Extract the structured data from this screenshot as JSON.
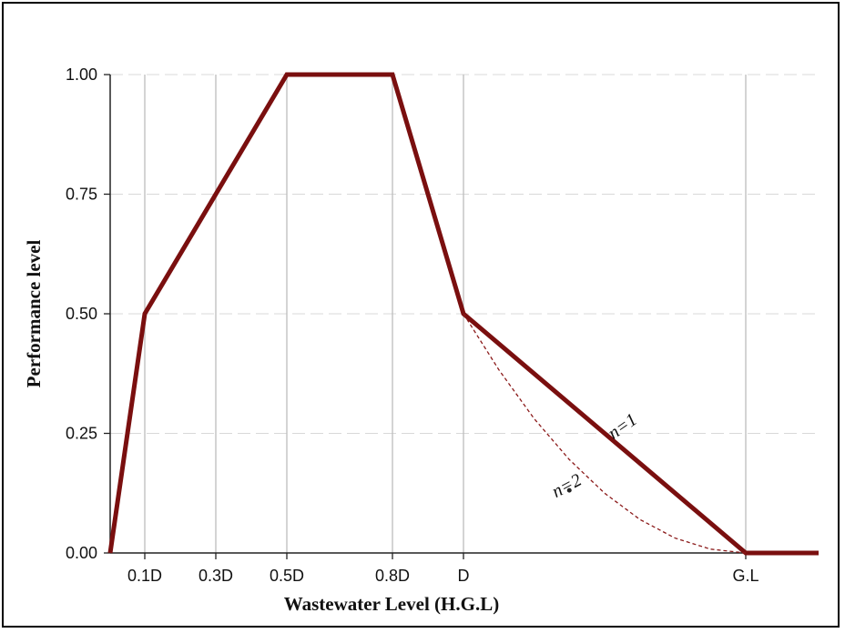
{
  "chart_data": {
    "type": "line",
    "xlabel": "Wastewater Level (H.G.L)",
    "ylabel": "Performance level",
    "x_ticks": [
      {
        "label": "0.1D",
        "x": 0.1
      },
      {
        "label": "0.3D",
        "x": 0.3
      },
      {
        "label": "0.5D",
        "x": 0.5
      },
      {
        "label": "0.8D",
        "x": 0.8
      },
      {
        "label": "D",
        "x": 1.0
      },
      {
        "label": "G.L",
        "x": 1.8
      }
    ],
    "y_ticks": [
      {
        "label": "0.00",
        "y": 0
      },
      {
        "label": "0.25",
        "y": 0.25
      },
      {
        "label": "0.50",
        "y": 0.5
      },
      {
        "label": "0.75",
        "y": 0.75
      },
      {
        "label": "1.00",
        "y": 1.0
      }
    ],
    "xlim": [
      0,
      2.0
    ],
    "ylim": [
      0,
      1.0
    ],
    "grid": {
      "vertical": true,
      "horizontal_dashed": true
    },
    "series": [
      {
        "name": "n=1",
        "style": "solid-thick",
        "color": "#7a0f0f",
        "x": [
          0,
          0.1,
          0.5,
          0.8,
          1.0,
          1.8,
          2.0
        ],
        "y": [
          0,
          0.5,
          1.0,
          1.0,
          0.5,
          0,
          0
        ]
      },
      {
        "name": "n=2",
        "style": "dashed-thin",
        "color": "#8b1a1a",
        "x": [
          1.0,
          1.1,
          1.2,
          1.3,
          1.4,
          1.5,
          1.6,
          1.7,
          1.8
        ],
        "y": [
          0.5,
          0.383,
          0.281,
          0.195,
          0.125,
          0.07,
          0.031,
          0.008,
          0
        ]
      }
    ],
    "annotations": [
      {
        "text": "n=1",
        "x": 1.46,
        "y": 0.255,
        "rotate": -35
      },
      {
        "text": "n=2",
        "x": 1.3,
        "y": 0.13,
        "rotate": -28
      }
    ],
    "marker": {
      "x": 1.3,
      "y": 0.131
    }
  }
}
